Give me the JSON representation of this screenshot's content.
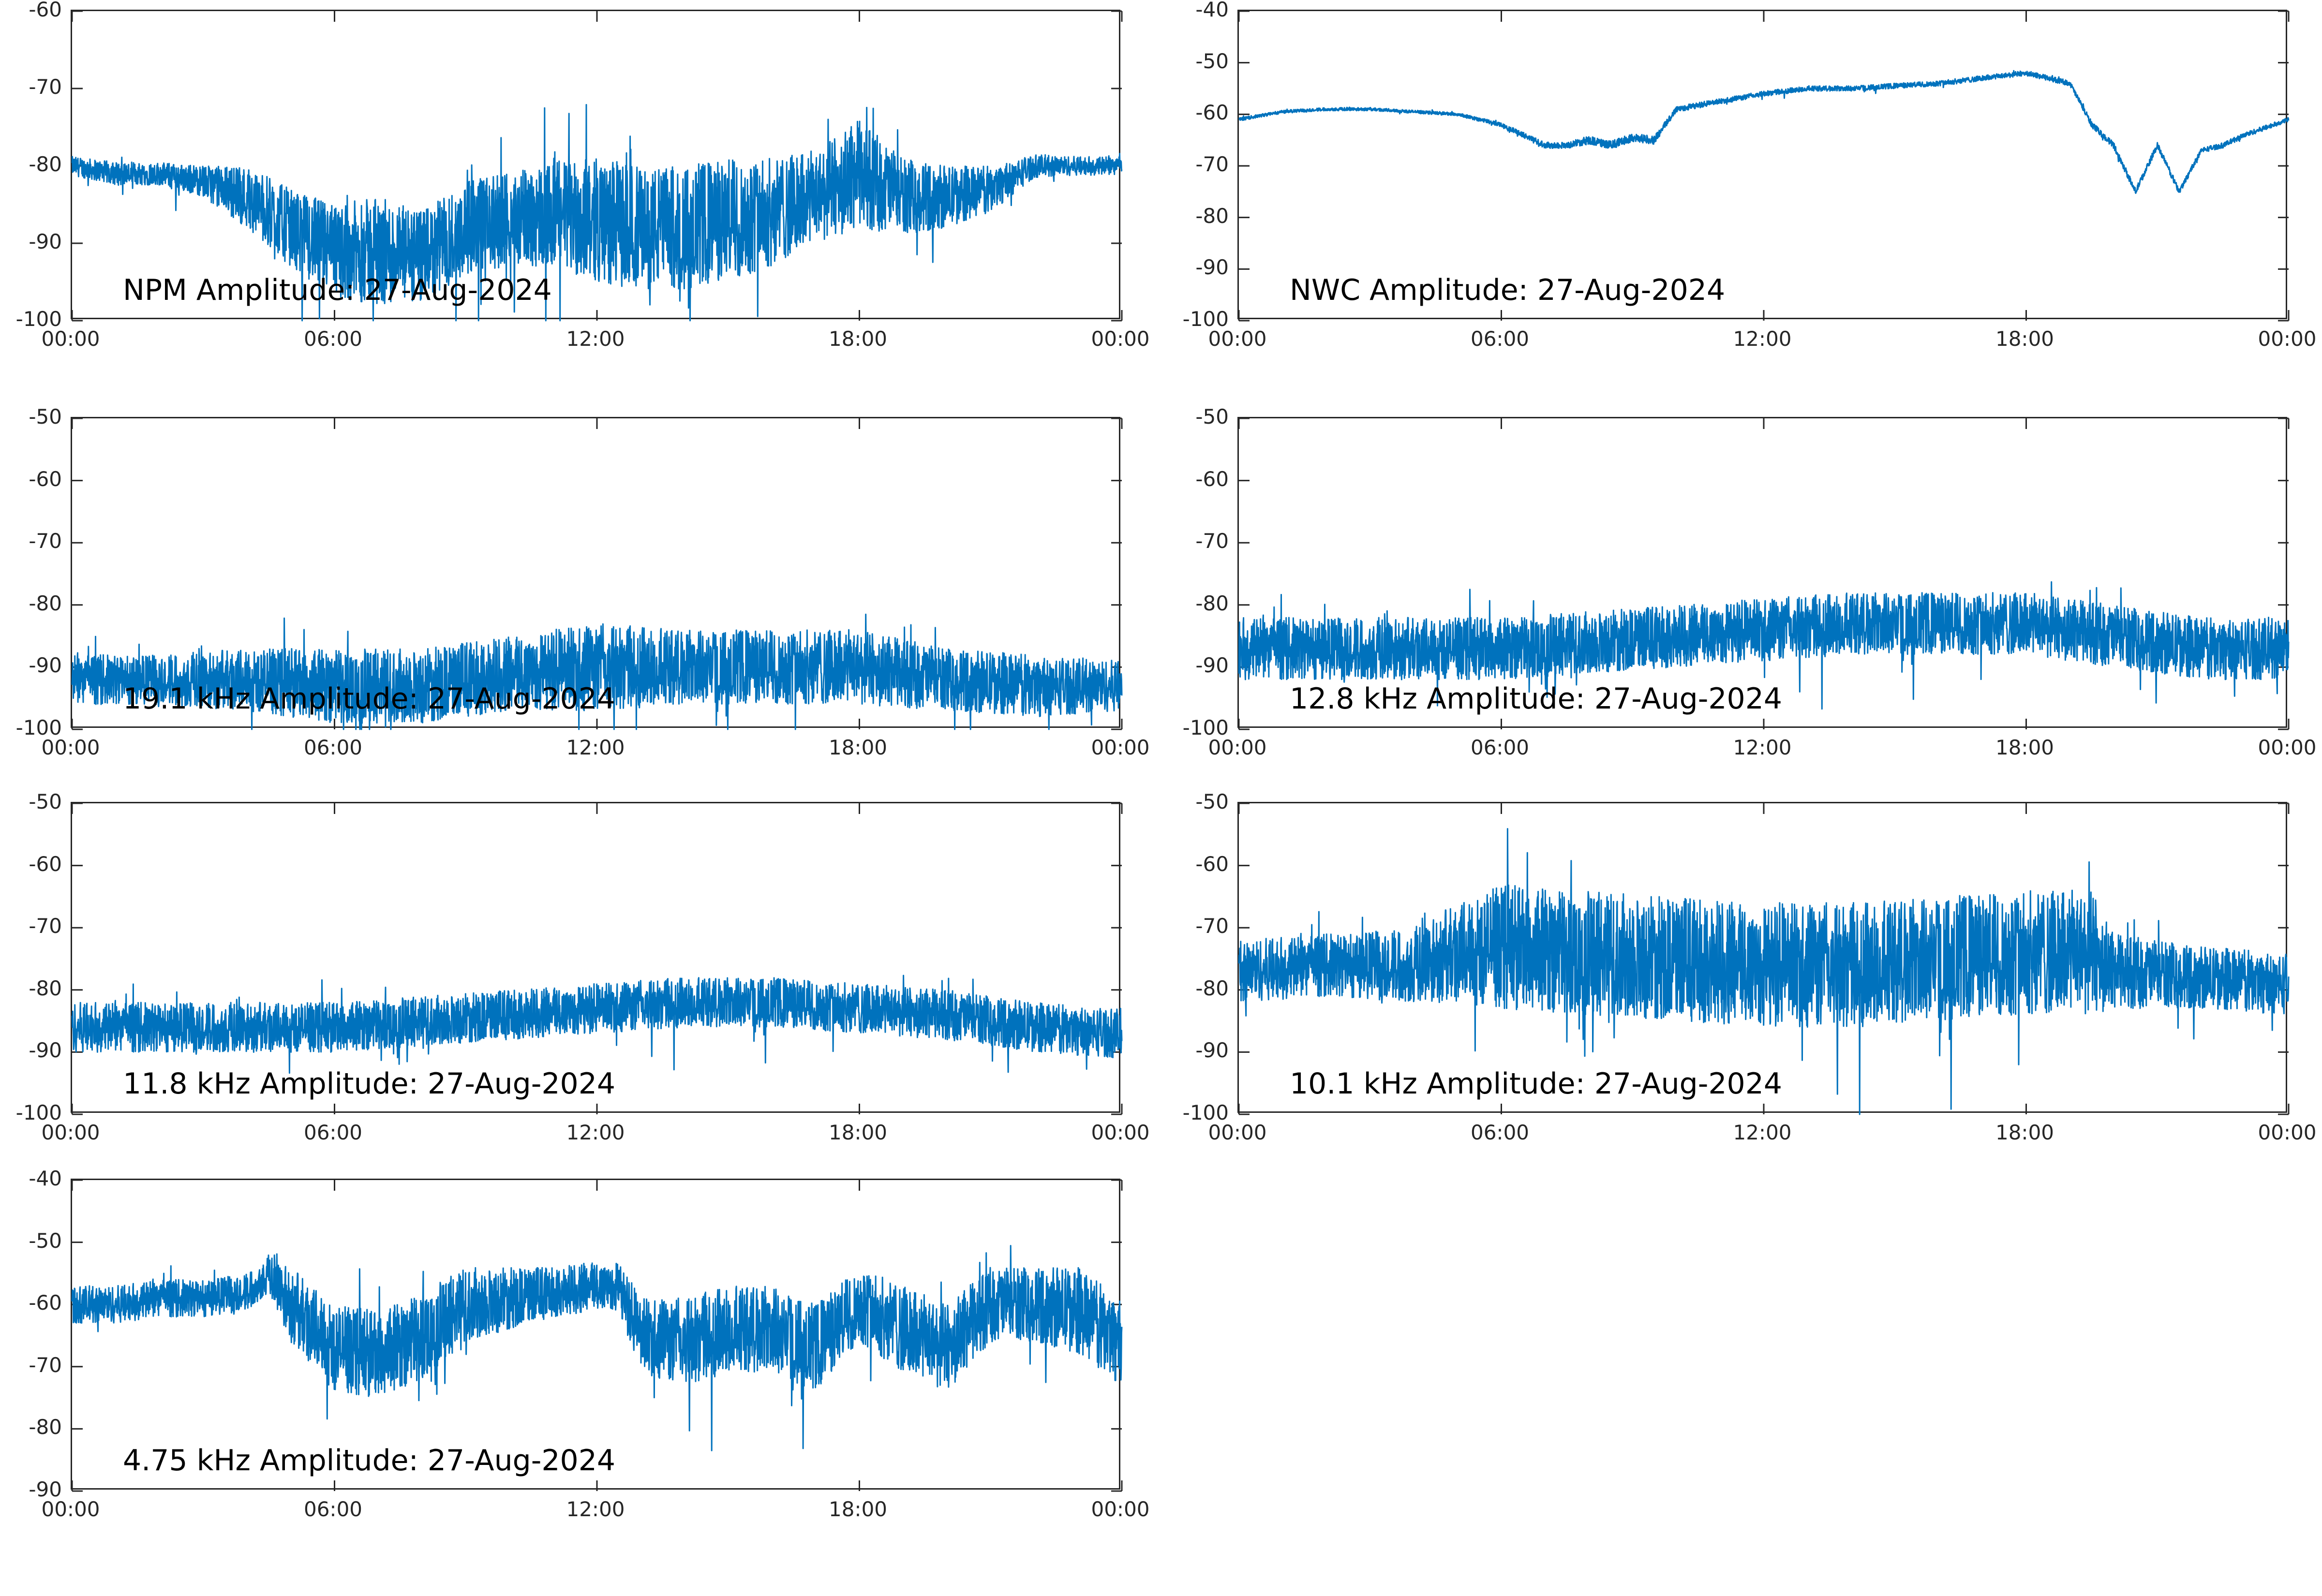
{
  "colors": {
    "series": "#0072BD",
    "axis": "#262626",
    "background": "#ffffff"
  },
  "chart_data": [
    {
      "type": "line",
      "title": "NPM Amplitude: 27-Aug-2024",
      "xticks": [
        "00:00",
        "06:00",
        "12:00",
        "18:00",
        "00:00"
      ],
      "xlim": [
        0,
        24
      ],
      "ylim": [
        -100,
        -60
      ],
      "yticks": [
        -60,
        -70,
        -80,
        -90,
        -100
      ],
      "grid": false,
      "series": [
        {
          "x": [
            0,
            1,
            2,
            3,
            4,
            5,
            6,
            7,
            8,
            9,
            10,
            11,
            12,
            13,
            14,
            15,
            16,
            17,
            18,
            19,
            20,
            21,
            22,
            23,
            24
          ],
          "values": [
            -80,
            -81,
            -81,
            -82,
            -84,
            -88,
            -91,
            -91,
            -92,
            -88,
            -87,
            -86,
            -87,
            -88,
            -88,
            -87,
            -86,
            -84,
            -81,
            -84,
            -84,
            -83,
            -80,
            -80,
            -80
          ],
          "spread": [
            1.2,
            1.5,
            1.5,
            2,
            4,
            5,
            6,
            7,
            6,
            6,
            6,
            7,
            8,
            8,
            8,
            8,
            7,
            6,
            7,
            5,
            4,
            3,
            1.5,
            1.2,
            1.2
          ]
        }
      ]
    },
    {
      "type": "line",
      "title": "NWC Amplitude: 27-Aug-2024",
      "xticks": [
        "00:00",
        "06:00",
        "12:00",
        "18:00",
        "00:00"
      ],
      "xlim": [
        0,
        24
      ],
      "ylim": [
        -100,
        -40
      ],
      "yticks": [
        -40,
        -50,
        -60,
        -70,
        -80,
        -90,
        -100
      ],
      "grid": false,
      "series": [
        {
          "x": [
            0,
            1,
            2,
            3,
            4,
            5,
            6,
            6.5,
            7,
            7.5,
            8,
            8.5,
            9,
            9.5,
            10,
            11,
            12,
            13,
            14,
            15,
            16,
            17,
            18,
            18.5,
            19,
            19.5,
            20,
            20.5,
            21,
            21.5,
            22,
            22.5,
            23,
            24
          ],
          "values": [
            -61,
            -59.5,
            -59,
            -59,
            -59.5,
            -60,
            -62,
            -64,
            -66,
            -66,
            -65,
            -66,
            -64.5,
            -65,
            -59,
            -57.5,
            -56,
            -55,
            -55,
            -54.5,
            -54,
            -53,
            -52,
            -53,
            -54,
            -62,
            -66,
            -75,
            -66,
            -75,
            -67,
            -66,
            -64,
            -61
          ],
          "spread": [
            0.3,
            0.3,
            0.3,
            0.3,
            0.3,
            0.3,
            0.4,
            0.5,
            0.6,
            0.6,
            0.8,
            0.8,
            0.8,
            0.8,
            0.6,
            0.5,
            0.5,
            0.5,
            0.5,
            0.5,
            0.5,
            0.5,
            0.5,
            0.5,
            0.5,
            0.6,
            0.6,
            0.6,
            0.6,
            0.6,
            0.5,
            0.5,
            0.5,
            0.4
          ]
        }
      ]
    },
    {
      "type": "line",
      "title": "19.1 kHz Amplitude: 27-Aug-2024",
      "xticks": [
        "00:00",
        "06:00",
        "12:00",
        "18:00",
        "00:00"
      ],
      "xlim": [
        0,
        24
      ],
      "ylim": [
        -100,
        -50
      ],
      "yticks": [
        -50,
        -60,
        -70,
        -80,
        -90,
        -100
      ],
      "grid": false,
      "series": [
        {
          "x": [
            0,
            2,
            4,
            6,
            8,
            10,
            12,
            14,
            16,
            18,
            20,
            22,
            24
          ],
          "values": [
            -92,
            -92,
            -92,
            -93,
            -93,
            -91,
            -90,
            -90,
            -90,
            -90,
            -92,
            -93,
            -93
          ],
          "spread": [
            4,
            4,
            5,
            6,
            6,
            6,
            7,
            6,
            6,
            6,
            5,
            5,
            4
          ]
        }
      ]
    },
    {
      "type": "line",
      "title": "12.8 kHz Amplitude: 27-Aug-2024",
      "xticks": [
        "00:00",
        "06:00",
        "12:00",
        "18:00",
        "00:00"
      ],
      "xlim": [
        0,
        24
      ],
      "ylim": [
        -100,
        -50
      ],
      "yticks": [
        -50,
        -60,
        -70,
        -80,
        -90,
        -100
      ],
      "grid": false,
      "series": [
        {
          "x": [
            0,
            2,
            4,
            6,
            8,
            10,
            12,
            14,
            16,
            18,
            20,
            22,
            24
          ],
          "values": [
            -87,
            -87,
            -87,
            -87,
            -86,
            -85,
            -84,
            -83,
            -83,
            -83,
            -85,
            -87,
            -87
          ],
          "spread": [
            5,
            5,
            5,
            5,
            5,
            5,
            5,
            5,
            5,
            5,
            5,
            5,
            5
          ]
        }
      ]
    },
    {
      "type": "line",
      "title": "11.8 kHz Amplitude: 27-Aug-2024",
      "xticks": [
        "00:00",
        "06:00",
        "12:00",
        "18:00",
        "00:00"
      ],
      "xlim": [
        0,
        24
      ],
      "ylim": [
        -100,
        -50
      ],
      "yticks": [
        -50,
        -60,
        -70,
        -80,
        -90,
        -100
      ],
      "grid": false,
      "series": [
        {
          "x": [
            0,
            2,
            4,
            6,
            8,
            10,
            12,
            14,
            16,
            18,
            20,
            22,
            24
          ],
          "values": [
            -86,
            -86,
            -86,
            -86,
            -85,
            -84,
            -83,
            -82,
            -82,
            -83,
            -84,
            -86,
            -87
          ],
          "spread": [
            4,
            4,
            4,
            4,
            4,
            4,
            4,
            4,
            4,
            4,
            4,
            4,
            4
          ]
        }
      ]
    },
    {
      "type": "line",
      "title": "10.1 kHz Amplitude: 27-Aug-2024",
      "xticks": [
        "00:00",
        "06:00",
        "12:00",
        "18:00",
        "00:00"
      ],
      "xlim": [
        0,
        24
      ],
      "ylim": [
        -100,
        -50
      ],
      "yticks": [
        -50,
        -60,
        -70,
        -80,
        -90,
        -100
      ],
      "grid": false,
      "series": [
        {
          "x": [
            0,
            2,
            4,
            5,
            6,
            8,
            10,
            12,
            14,
            16,
            18,
            19.5,
            20,
            22,
            24
          ],
          "values": [
            -77,
            -76,
            -76,
            -74,
            -73,
            -74,
            -75,
            -76,
            -76,
            -75,
            -74,
            -74,
            -77,
            -78,
            -79
          ],
          "spread": [
            5,
            5,
            6,
            8,
            10,
            10,
            10,
            10,
            10,
            10,
            10,
            10,
            6,
            5,
            5
          ]
        }
      ]
    },
    {
      "type": "line",
      "title": "4.75 kHz Amplitude: 27-Aug-2024",
      "xticks": [
        "00:00",
        "06:00",
        "12:00",
        "18:00",
        "00:00"
      ],
      "xlim": [
        0,
        24
      ],
      "ylim": [
        -90,
        -40
      ],
      "yticks": [
        -40,
        -50,
        -60,
        -70,
        -80,
        -90
      ],
      "grid": false,
      "series": [
        {
          "x": [
            0,
            1,
            2,
            3,
            4,
            4.5,
            5,
            6,
            7,
            8,
            9,
            10,
            11,
            12,
            12.5,
            13,
            14,
            15,
            16,
            17,
            18,
            19,
            20,
            21,
            22,
            23,
            24
          ],
          "values": [
            -60,
            -60,
            -59,
            -59,
            -58,
            -55,
            -60,
            -67,
            -68,
            -65,
            -60,
            -59,
            -58,
            -57,
            -57,
            -65,
            -66,
            -64,
            -64,
            -67,
            -60,
            -64,
            -67,
            -60,
            -60,
            -61,
            -66
          ],
          "spread": [
            3,
            3,
            3,
            3,
            3,
            3,
            6,
            7,
            7,
            7,
            6,
            5,
            4,
            4,
            4,
            6,
            7,
            7,
            7,
            7,
            6,
            7,
            7,
            6,
            6,
            7,
            7
          ]
        }
      ]
    }
  ]
}
